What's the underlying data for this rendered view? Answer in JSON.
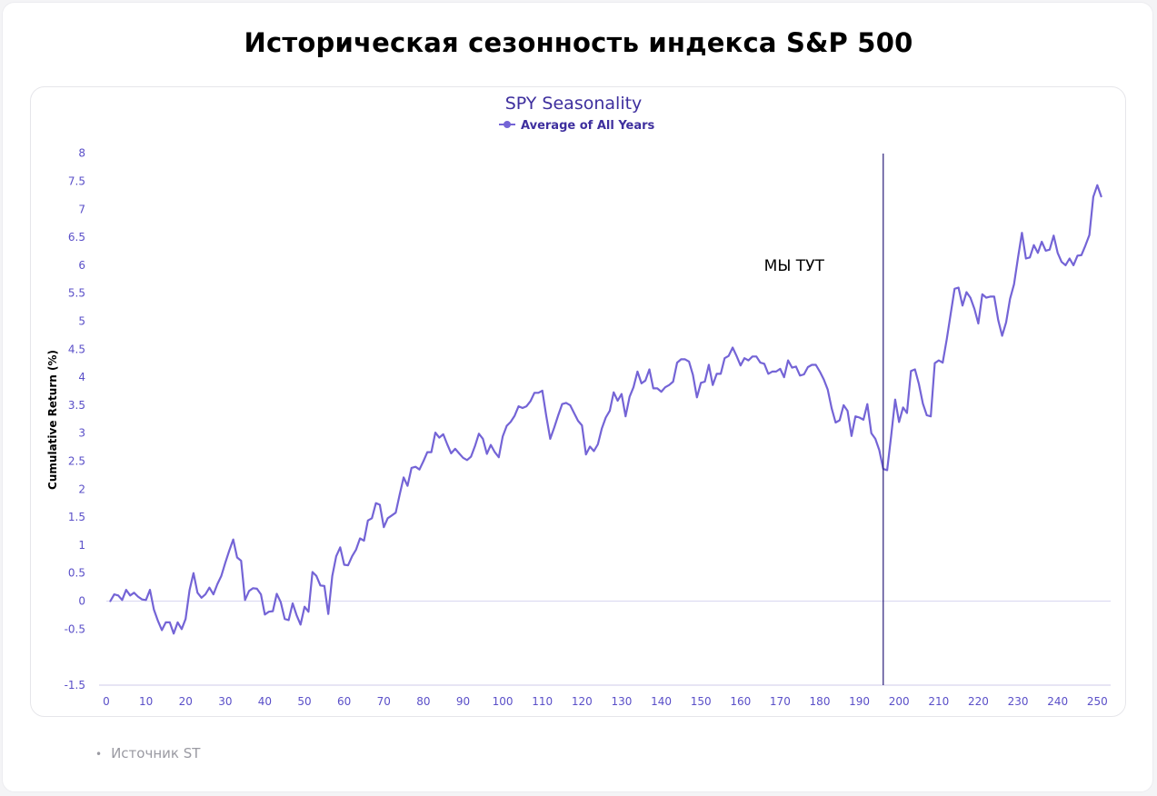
{
  "page": {
    "title": "Историческая сезонность индекса S&P 500",
    "source": "Источник ST"
  },
  "colors": {
    "line": "#7464d6",
    "axis_text": "#5a4fc8",
    "title_text": "#3e2f9e",
    "marker": "#2a1d7a",
    "zero_line": "#d9d6f0",
    "axis_line": "#cfcbe8"
  },
  "chart_data": {
    "type": "line",
    "title": "SPY Seasonality",
    "ylabel": "Cumulative Return (%)",
    "xlabel": "",
    "legend": {
      "placement": "top-center",
      "label": "Average of All Years"
    },
    "xlim": [
      0,
      252
    ],
    "ylim": [
      -1.5,
      8
    ],
    "x_ticks": [
      0,
      10,
      20,
      30,
      40,
      50,
      60,
      70,
      80,
      90,
      100,
      110,
      120,
      130,
      140,
      150,
      160,
      170,
      180,
      190,
      200,
      210,
      220,
      230,
      240,
      250
    ],
    "y_ticks": [
      -1.5,
      -0.5,
      0,
      0.5,
      1,
      1.5,
      2,
      2.5,
      3,
      3.5,
      4,
      4.5,
      5,
      5.5,
      6,
      6.5,
      7,
      7.5,
      8
    ],
    "grid": false,
    "annotation": {
      "text": "МЫ ТУТ",
      "x": 196
    },
    "series": [
      {
        "name": "Average of All Years",
        "x": [
          1,
          2,
          3,
          4,
          5,
          6,
          7,
          8,
          9,
          10,
          11,
          12,
          13,
          14,
          15,
          16,
          17,
          18,
          19,
          20,
          21,
          22,
          23,
          24,
          25,
          26,
          27,
          28,
          29,
          30,
          31,
          32,
          33,
          34,
          35,
          36,
          37,
          38,
          39,
          40,
          41,
          42,
          43,
          44,
          45,
          46,
          47,
          48,
          49,
          50,
          51,
          52,
          53,
          54,
          55,
          56,
          57,
          58,
          59,
          60,
          61,
          62,
          63,
          64,
          65,
          66,
          67,
          68,
          69,
          70,
          71,
          72,
          73,
          74,
          75,
          76,
          77,
          78,
          79,
          80,
          81,
          82,
          83,
          84,
          85,
          86,
          87,
          88,
          89,
          90,
          91,
          92,
          93,
          94,
          95,
          96,
          97,
          98,
          99,
          100,
          101,
          102,
          103,
          104,
          105,
          106,
          107,
          108,
          109,
          110,
          111,
          112,
          113,
          114,
          115,
          116,
          117,
          118,
          119,
          120,
          121,
          122,
          123,
          124,
          125,
          126,
          127,
          128,
          129,
          130,
          131,
          132,
          133,
          134,
          135,
          136,
          137,
          138,
          139,
          140,
          141,
          142,
          143,
          144,
          145,
          146,
          147,
          148,
          149,
          150,
          151,
          152,
          153,
          154,
          155,
          156,
          157,
          158,
          159,
          160,
          161,
          162,
          163,
          164,
          165,
          166,
          167,
          168,
          169,
          170,
          171,
          172,
          173,
          174,
          175,
          176,
          177,
          178,
          179,
          180,
          181,
          182,
          183,
          184,
          185,
          186,
          187,
          188,
          189,
          190,
          191,
          192,
          193,
          194,
          195,
          196,
          197,
          198,
          199,
          200,
          201,
          202,
          203,
          204,
          205,
          206,
          207,
          208,
          209,
          210,
          211,
          212,
          213,
          214,
          215,
          216,
          217,
          218,
          219,
          220,
          221,
          222,
          223,
          224,
          225,
          226,
          227,
          228,
          229,
          230,
          231,
          232,
          233,
          234,
          235,
          236,
          237,
          238,
          239,
          240,
          241,
          242,
          243,
          244,
          245,
          246,
          247,
          248,
          249,
          250,
          251
        ],
        "values": [
          0.0,
          0.12,
          0.1,
          0.02,
          0.2,
          0.1,
          0.15,
          0.08,
          0.03,
          0.02,
          0.2,
          -0.15,
          -0.35,
          -0.52,
          -0.38,
          -0.38,
          -0.58,
          -0.38,
          -0.5,
          -0.32,
          0.2,
          0.5,
          0.15,
          0.06,
          0.12,
          0.24,
          0.12,
          0.3,
          0.45,
          0.68,
          0.9,
          1.1,
          0.78,
          0.72,
          0.02,
          0.18,
          0.23,
          0.22,
          0.12,
          -0.24,
          -0.19,
          -0.18,
          0.13,
          -0.02,
          -0.32,
          -0.34,
          -0.04,
          -0.25,
          -0.42,
          -0.1,
          -0.19,
          0.52,
          0.45,
          0.28,
          0.27,
          -0.23,
          0.45,
          0.8,
          0.96,
          0.65,
          0.64,
          0.8,
          0.92,
          1.12,
          1.08,
          1.44,
          1.48,
          1.75,
          1.72,
          1.32,
          1.48,
          1.53,
          1.58,
          1.9,
          2.21,
          2.06,
          2.38,
          2.4,
          2.35,
          2.5,
          2.66,
          2.66,
          3.01,
          2.92,
          2.98,
          2.8,
          2.64,
          2.72,
          2.64,
          2.56,
          2.52,
          2.58,
          2.77,
          2.99,
          2.9,
          2.63,
          2.79,
          2.66,
          2.57,
          2.94,
          3.13,
          3.2,
          3.31,
          3.48,
          3.45,
          3.48,
          3.57,
          3.72,
          3.72,
          3.76,
          3.3,
          2.9,
          3.1,
          3.32,
          3.52,
          3.54,
          3.5,
          3.36,
          3.22,
          3.14,
          2.62,
          2.76,
          2.68,
          2.8,
          3.08,
          3.28,
          3.4,
          3.73,
          3.58,
          3.7,
          3.3,
          3.65,
          3.82,
          4.1,
          3.89,
          3.94,
          4.14,
          3.8,
          3.8,
          3.74,
          3.82,
          3.86,
          3.92,
          4.26,
          4.32,
          4.32,
          4.28,
          4.04,
          3.64,
          3.9,
          3.92,
          4.22,
          3.86,
          4.06,
          4.06,
          4.34,
          4.38,
          4.53,
          4.38,
          4.21,
          4.34,
          4.3,
          4.37,
          4.37,
          4.26,
          4.24,
          4.06,
          4.1,
          4.1,
          4.15,
          4.0,
          4.3,
          4.17,
          4.19,
          4.03,
          4.05,
          4.18,
          4.22,
          4.22,
          4.1,
          3.96,
          3.78,
          3.44,
          3.19,
          3.23,
          3.5,
          3.4,
          2.95,
          3.3,
          3.28,
          3.24,
          3.52,
          3.0,
          2.9,
          2.7,
          2.36,
          2.34,
          2.95,
          3.6,
          3.2,
          3.46,
          3.36,
          4.11,
          4.14,
          3.88,
          3.53,
          3.32,
          3.3,
          4.25,
          4.3,
          4.26,
          4.67,
          5.12,
          5.58,
          5.6,
          5.28,
          5.52,
          5.42,
          5.22,
          4.96,
          5.48,
          5.42,
          5.44,
          5.44,
          5.02,
          4.74,
          4.98,
          5.4,
          5.66,
          6.14,
          6.58,
          6.12,
          6.14,
          6.36,
          6.22,
          6.42,
          6.26,
          6.28,
          6.53,
          6.22,
          6.06,
          6.0,
          6.12,
          6.0,
          6.17,
          6.18,
          6.35,
          6.54,
          7.22,
          7.43,
          7.23
        ]
      }
    ]
  }
}
